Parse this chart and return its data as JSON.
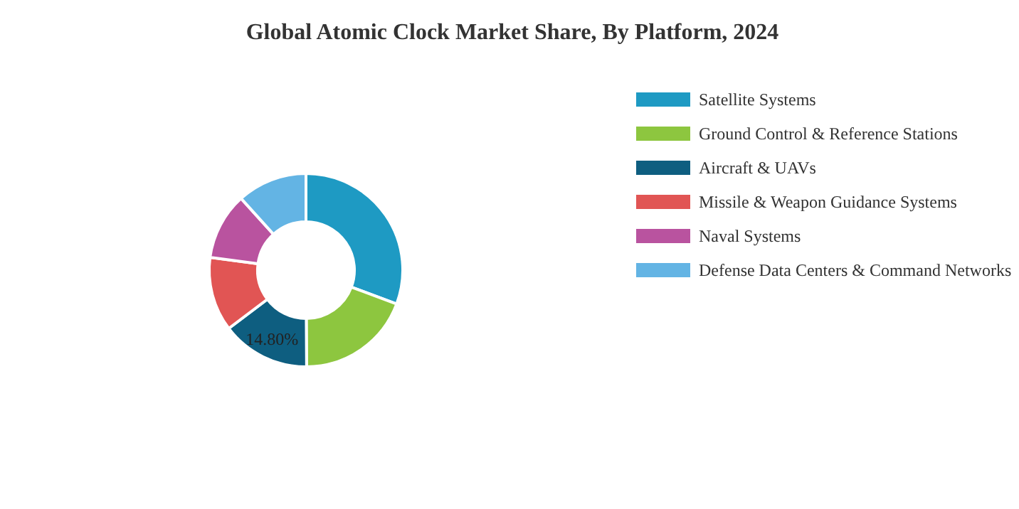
{
  "chart_data": {
    "type": "donut",
    "title": "Global Atomic Clock Market Share, By Platform, 2024",
    "categories": [
      "Satellite Systems",
      "Ground Control & Reference Stations",
      "Aircraft & UAVs",
      "Missile & Weapon Guidance Systems",
      "Naval Systems",
      "Defense Data Centers & Command Networks"
    ],
    "values": [
      30.7,
      19.2,
      14.8,
      12.4,
      11.2,
      11.7
    ],
    "colors": [
      "#1e9ac3",
      "#8dc63f",
      "#0e5e80",
      "#e15554",
      "#b9539f",
      "#63b4e4"
    ],
    "value_labels": [
      null,
      null,
      "14.80%",
      null,
      null,
      null
    ],
    "legend": "right"
  }
}
